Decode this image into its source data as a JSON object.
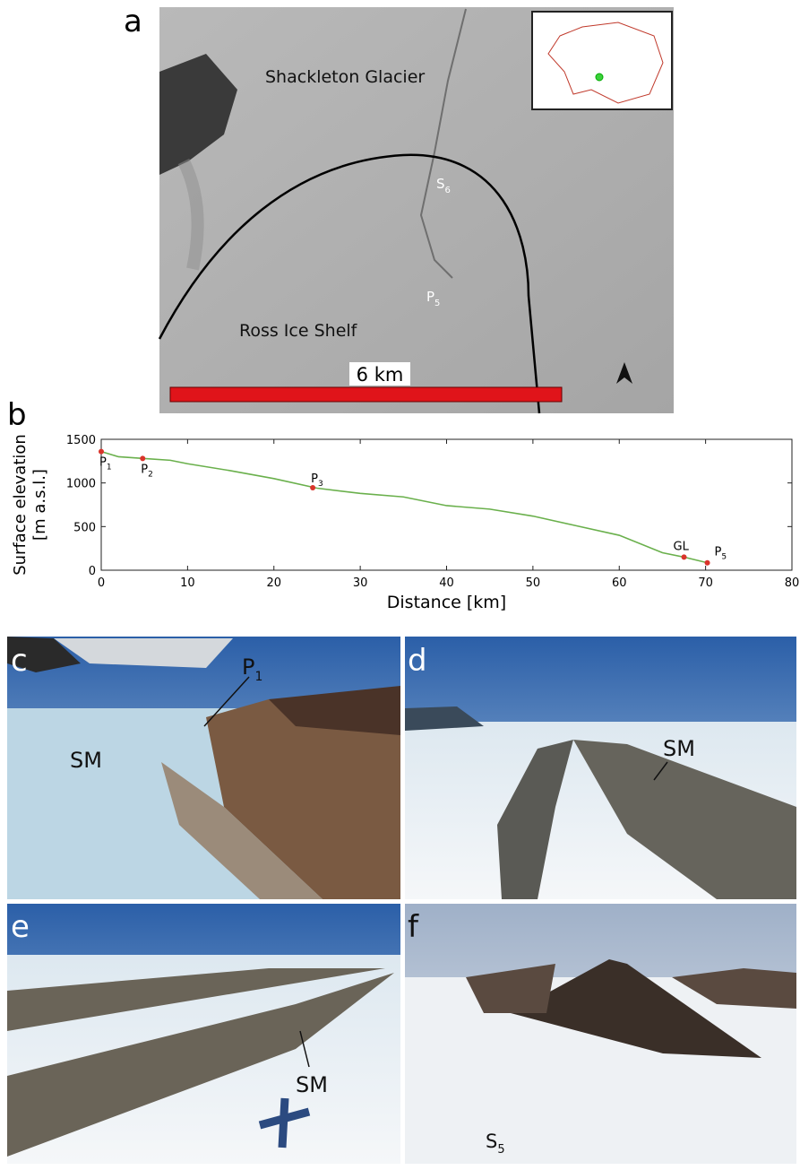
{
  "panel_a": {
    "label": "a",
    "glacier": "Shackleton Glacier",
    "shelf": "Ross Ice Shelf",
    "site_s6": {
      "main": "S",
      "sub": "6"
    },
    "site_p5": {
      "main": "P",
      "sub": "5"
    },
    "scale": "6 km"
  },
  "chart_data": {
    "type": "line",
    "panel_label": "b",
    "y_label": [
      "Surface elevation",
      "[m a.s.l.]"
    ],
    "x_label": "Distance [km]",
    "x": [
      0,
      2,
      5,
      8,
      10,
      15,
      20,
      25,
      30,
      35,
      40,
      45,
      50,
      55,
      60,
      65,
      67.5,
      70
    ],
    "values": [
      1360,
      1300,
      1280,
      1260,
      1220,
      1140,
      1050,
      940,
      880,
      840,
      740,
      700,
      620,
      510,
      400,
      200,
      150,
      90
    ],
    "color": "#6ab04c",
    "point_color": "#d9342b",
    "points": [
      {
        "label": {
          "main": "P",
          "sub": "1"
        },
        "x": 0,
        "y": 1360
      },
      {
        "label": {
          "main": "P",
          "sub": "2"
        },
        "x": 4.8,
        "y": 1280
      },
      {
        "label": {
          "main": "P",
          "sub": "3"
        },
        "x": 24.5,
        "y": 945
      },
      {
        "label": {
          "main": "GL",
          "sub": ""
        },
        "x": 67.5,
        "y": 150
      },
      {
        "label": {
          "main": "P",
          "sub": "5"
        },
        "x": 70.2,
        "y": 85
      }
    ],
    "xlim": [
      0,
      80
    ],
    "xticks": [
      0,
      10,
      20,
      30,
      40,
      50,
      60,
      70,
      80
    ],
    "ylim": [
      0,
      1500
    ],
    "yticks": [
      0,
      500,
      1000,
      1500
    ]
  },
  "panel_c": {
    "label": "c",
    "p1": {
      "main": "P",
      "sub": "1"
    },
    "sm": "SM"
  },
  "panel_d": {
    "label": "d",
    "sm": "SM"
  },
  "panel_e": {
    "label": "e",
    "sm": "SM"
  },
  "panel_f": {
    "label": "f",
    "s5": {
      "main": "S",
      "sub": "5"
    }
  }
}
